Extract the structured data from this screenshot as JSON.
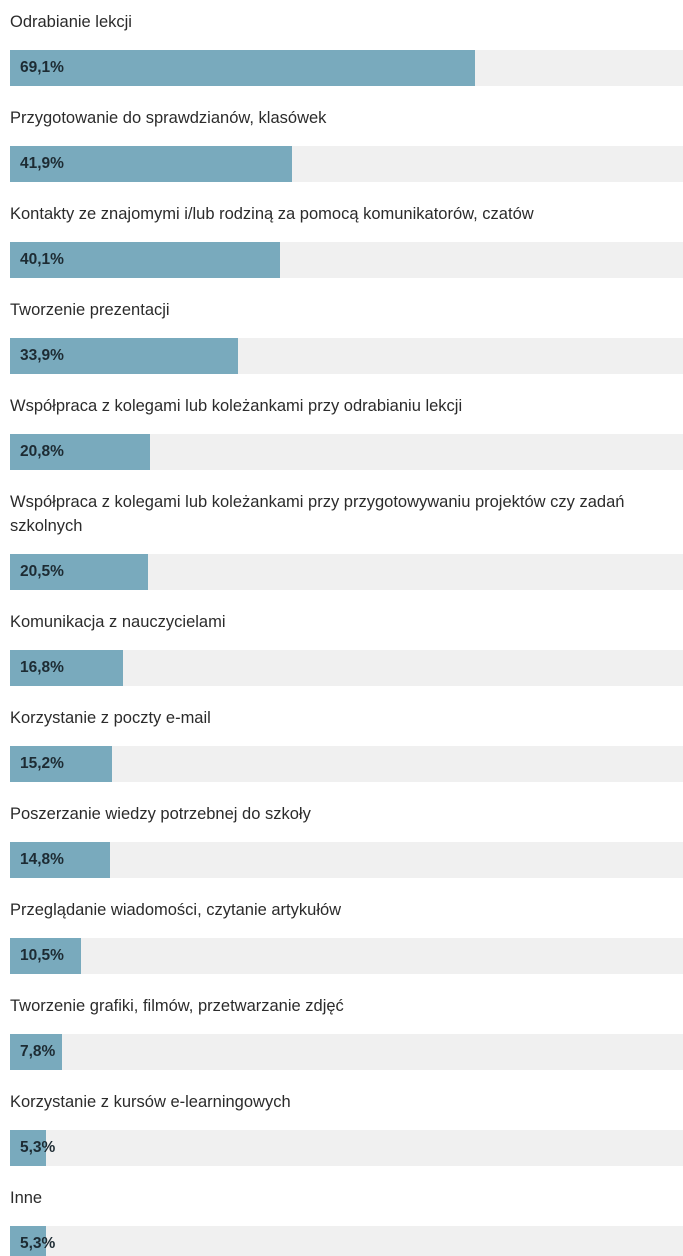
{
  "chart_data": {
    "type": "bar",
    "orientation": "horizontal",
    "categories": [
      "Odrabianie lekcji",
      "Przygotowanie do sprawdzianów, klasówek",
      "Kontakty ze znajomymi i/lub rodziną za pomocą komunikatorów, czatów",
      "Tworzenie prezentacji",
      "Współpraca z kolegami lub koleżankami przy odrabianiu lekcji",
      "Współpraca z kolegami lub koleżankami przy przygotowywaniu projektów czy zadań szkolnych",
      "Komunikacja z nauczycielami",
      "Korzystanie z poczty e-mail",
      "Poszerzanie wiedzy potrzebnej do szkoły",
      "Przeglądanie wiadomości, czytanie artykułów",
      "Tworzenie grafiki, filmów, przetwarzanie zdjęć",
      "Korzystanie z kursów e-learningowych",
      "Inne"
    ],
    "values": [
      69.1,
      41.9,
      40.1,
      33.9,
      20.8,
      20.5,
      16.8,
      15.2,
      14.8,
      10.5,
      7.8,
      5.3,
      5.3
    ],
    "value_labels": [
      "69,1%",
      "41,9%",
      "40,1%",
      "33,9%",
      "20,8%",
      "20,5%",
      "16,8%",
      "15,2%",
      "14,8%",
      "10,5%",
      "7,8%",
      "5,3%",
      "5,3%"
    ],
    "color": "#79aabd",
    "xlim": [
      0,
      100
    ]
  }
}
